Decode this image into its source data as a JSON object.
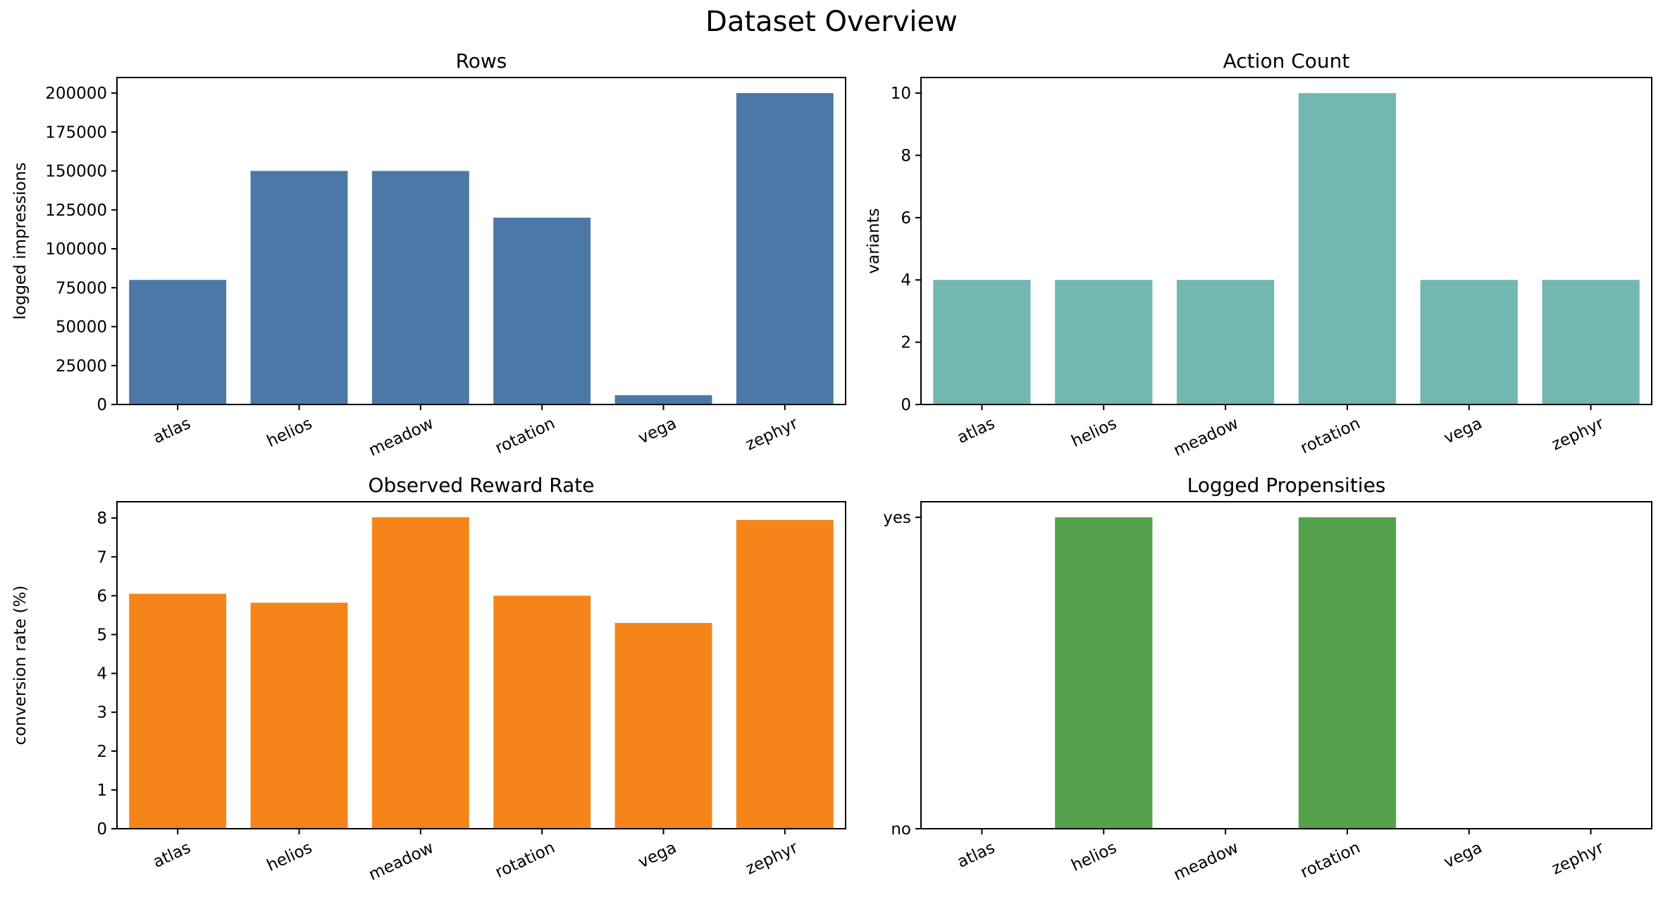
{
  "figure": {
    "title": "Dataset Overview"
  },
  "chart_data": [
    {
      "type": "bar",
      "title": "Rows",
      "xlabel": "",
      "ylabel": "logged impressions",
      "categories": [
        "atlas",
        "helios",
        "meadow",
        "rotation",
        "vega",
        "zephyr"
      ],
      "values": [
        80000,
        150000,
        150000,
        120000,
        6000,
        200000
      ],
      "ylim": [
        0,
        210000
      ],
      "yticks": [
        0,
        25000,
        50000,
        75000,
        100000,
        125000,
        150000,
        175000,
        200000
      ],
      "color": "#4c78a8",
      "grid": false
    },
    {
      "type": "bar",
      "title": "Action Count",
      "xlabel": "",
      "ylabel": "variants",
      "categories": [
        "atlas",
        "helios",
        "meadow",
        "rotation",
        "vega",
        "zephyr"
      ],
      "values": [
        4,
        4,
        4,
        10,
        4,
        4
      ],
      "ylim": [
        0,
        10.5
      ],
      "yticks": [
        0,
        2,
        4,
        6,
        8,
        10
      ],
      "color": "#72b7b2",
      "grid": false
    },
    {
      "type": "bar",
      "title": "Observed Reward Rate",
      "xlabel": "",
      "ylabel": "conversion rate (%)",
      "categories": [
        "atlas",
        "helios",
        "meadow",
        "rotation",
        "vega",
        "zephyr"
      ],
      "values": [
        6.05,
        5.82,
        8.02,
        6.0,
        5.3,
        7.95
      ],
      "ylim": [
        0,
        8.42
      ],
      "yticks": [
        0,
        1,
        2,
        3,
        4,
        5,
        6,
        7,
        8
      ],
      "color": "#f58518",
      "grid": false
    },
    {
      "type": "bar",
      "title": "Logged Propensities",
      "xlabel": "",
      "ylabel": "",
      "categories": [
        "atlas",
        "helios",
        "meadow",
        "rotation",
        "vega",
        "zephyr"
      ],
      "values": [
        0,
        1,
        0,
        1,
        0,
        0
      ],
      "ylim": [
        0,
        1.05
      ],
      "yticks": [
        0,
        1
      ],
      "ytick_labels": [
        "no",
        "yes"
      ],
      "color": "#54a24b",
      "grid": false
    }
  ]
}
